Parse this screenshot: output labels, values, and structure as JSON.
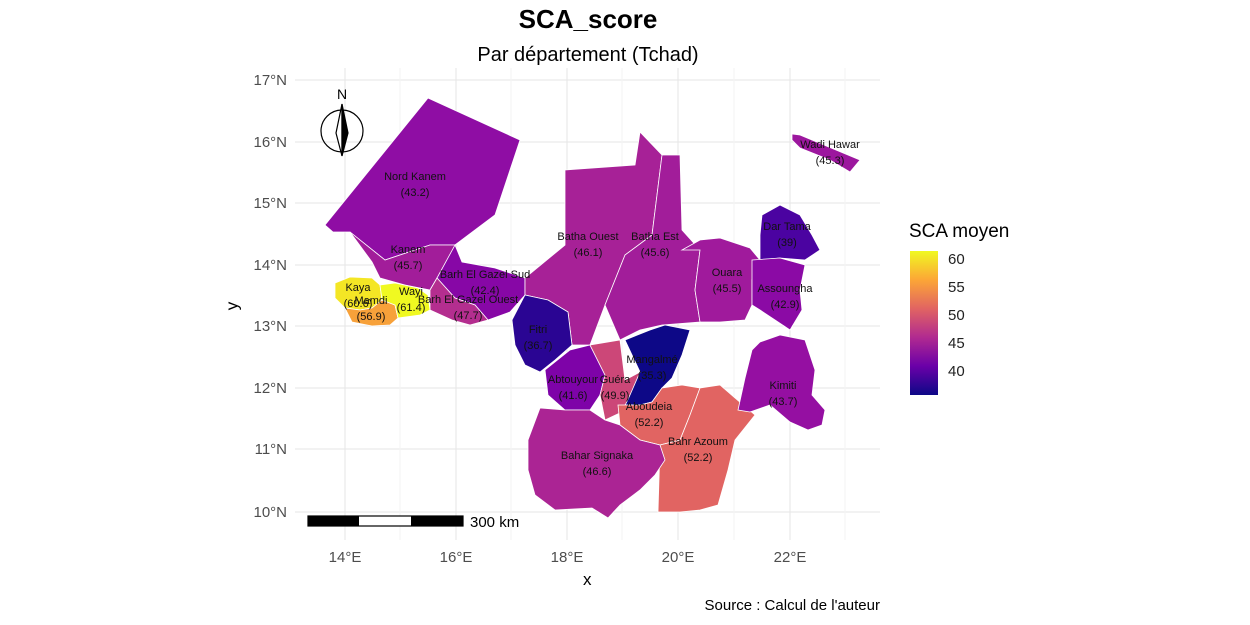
{
  "map": {
    "title": "SCA_score",
    "subtitle": "Par département (Tchad)",
    "caption": "Source : Calcul de l'auteur",
    "x_axis_title": "x",
    "y_axis_title": "y",
    "north_label": "N",
    "scale_label": "300 km",
    "lat_ticks": [
      "17°N",
      "16°N",
      "15°N",
      "14°N",
      "13°N",
      "12°N",
      "11°N",
      "10°N"
    ],
    "lon_ticks": [
      "14°E",
      "16°E",
      "18°E",
      "20°E",
      "22°E"
    ],
    "legend": {
      "title": "SCA moyen",
      "ticks": [
        "60",
        "55",
        "50",
        "45",
        "40"
      ],
      "gradient": [
        "#0d0887",
        "#6a00a8",
        "#b12a90",
        "#e16462",
        "#fca636",
        "#f0f921"
      ]
    },
    "colors": {
      "grid": "#e6e6e6",
      "region_border": "#ffffff",
      "tick_text": "#4d4d4d"
    },
    "regions": [
      {
        "name": "Nord Kanem",
        "value": "(43.2)",
        "color": "#8f0da4"
      },
      {
        "name": "Kanem",
        "value": "(45.7)",
        "color": "#a21d9a"
      },
      {
        "name": "Barh El Gazel Sud",
        "value": "(42.4)",
        "color": "#8707a6"
      },
      {
        "name": "Barh El Gazel Ouest",
        "value": "(47.7)",
        "color": "#b42e8f"
      },
      {
        "name": "Kaya",
        "value": "(60.6)",
        "color": "#f4e625"
      },
      {
        "name": "Mamdi",
        "value": "(56.9)",
        "color": "#f7a13a"
      },
      {
        "name": "Wayi",
        "value": "(61.4)",
        "color": "#f0f921"
      },
      {
        "name": "Batha Ouest",
        "value": "(46.1)",
        "color": "#a72197"
      },
      {
        "name": "Batha Est",
        "value": "(45.6)",
        "color": "#a21d9a"
      },
      {
        "name": "Fitri",
        "value": "(36.7)",
        "color": "#2a0593"
      },
      {
        "name": "Dar Tama",
        "value": "(39)",
        "color": "#4b03a1"
      },
      {
        "name": "Ouara",
        "value": "(45.5)",
        "color": "#a01a9c"
      },
      {
        "name": "Assoungha",
        "value": "(42.9)",
        "color": "#8b0aa5"
      },
      {
        "name": "Wadi Hawar",
        "value": "(45.3)",
        "color": "#9c179e"
      },
      {
        "name": "Mangalmé",
        "value": "(35.3)",
        "color": "#0d0887"
      },
      {
        "name": "Abtouyour",
        "value": "(41.6)",
        "color": "#7e03a8"
      },
      {
        "name": "Guéra",
        "value": "(49.9)",
        "color": "#cc4778"
      },
      {
        "name": "Aboudeia",
        "value": "(52.2)",
        "color": "#e16462"
      },
      {
        "name": "Bahr Azoum",
        "value": "(52.2)",
        "color": "#e16462"
      },
      {
        "name": "Kimiti",
        "value": "(43.7)",
        "color": "#950fa2"
      },
      {
        "name": "Bahar Signaka",
        "value": "(46.6)",
        "color": "#ab2494"
      }
    ]
  }
}
